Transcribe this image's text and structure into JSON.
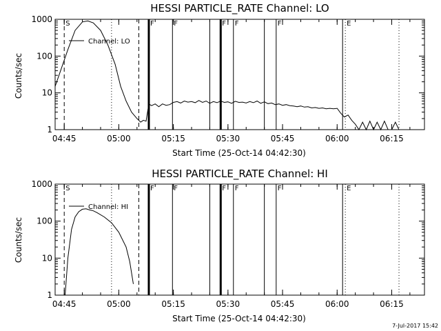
{
  "footer": {
    "timestamp": "7-Jul-2017 15:42"
  },
  "chart_data": [
    {
      "type": "line",
      "title": "HESSI PARTICLE_RATE Channel: LO",
      "xlabel": "Start Time (25-Oct-14 04:42:30)",
      "ylabel": "Counts/sec",
      "y_scale": "log",
      "ylim": [
        1,
        1000
      ],
      "xlim": [
        "04:42:30",
        "06:24:00"
      ],
      "x_ticks": [
        "04:45",
        "05:00",
        "05:15",
        "05:30",
        "05:45",
        "06:00",
        "06:15"
      ],
      "y_ticks": [
        "1",
        "10",
        "100",
        "1000"
      ],
      "legend": "Channel: LO",
      "series": [
        {
          "name": "Channel: LO",
          "x": [
            "04:42:30",
            "04:44:00",
            "04:46:00",
            "04:48:00",
            "04:50:00",
            "04:51:30",
            "04:53:00",
            "04:55:00",
            "04:57:00",
            "04:59:00",
            "05:00:30",
            "05:02:00",
            "05:03:30",
            "05:05:00",
            "05:06:00",
            "05:06:45",
            "05:07:30",
            "05:08:15",
            "05:09:00",
            "05:10:00",
            "05:11:00",
            "05:12:00",
            "05:13:00",
            "05:14:00",
            "05:15:00",
            "05:16:00",
            "05:17:00",
            "05:18:00",
            "05:19:00",
            "05:20:00",
            "05:21:00",
            "05:22:00",
            "05:23:00",
            "05:24:00",
            "05:25:00",
            "05:26:00",
            "05:27:00",
            "05:28:00",
            "05:29:00",
            "05:30:00",
            "05:31:00",
            "05:32:00",
            "05:33:00",
            "05:34:00",
            "05:35:00",
            "05:36:00",
            "05:37:00",
            "05:38:00",
            "05:39:00",
            "05:40:00",
            "05:41:00",
            "05:42:00",
            "05:43:00",
            "05:44:00",
            "05:45:00",
            "05:46:00",
            "05:47:00",
            "05:48:00",
            "05:49:00",
            "05:50:00",
            "05:51:00",
            "05:52:00",
            "05:53:00",
            "05:54:00",
            "05:55:00",
            "05:56:00",
            "05:57:00",
            "05:58:00",
            "05:59:00",
            "06:00:00",
            "06:01:00",
            "06:02:00",
            "06:03:00",
            "06:04:00",
            "06:05:00",
            "06:06:00",
            "06:07:00",
            "06:08:00",
            "06:09:00",
            "06:10:00",
            "06:11:00",
            "06:12:00",
            "06:13:00",
            "06:14:00",
            "06:15:00",
            "06:16:00",
            "06:17:00",
            "06:18:00"
          ],
          "values": [
            15,
            40,
            150,
            500,
            850,
            900,
            800,
            500,
            200,
            60,
            15,
            6,
            3,
            2,
            1.6,
            1.8,
            1.7,
            5,
            4.5,
            5,
            4.2,
            5,
            4.6,
            4.8,
            5.5,
            5.8,
            5.3,
            6,
            5.6,
            5.8,
            5.4,
            6.2,
            5.5,
            6,
            5.2,
            5.8,
            5.4,
            6,
            5.5,
            5.7,
            5.2,
            5.9,
            5.5,
            5.6,
            5.3,
            5.8,
            5.4,
            6,
            5.2,
            5.7,
            5.1,
            5.3,
            4.8,
            5,
            4.6,
            4.8,
            4.5,
            4.4,
            4.2,
            4.4,
            4.1,
            4.2,
            3.9,
            4,
            3.8,
            3.9,
            3.7,
            3.8,
            3.7,
            3.8,
            2.8,
            2.2,
            2.5,
            1.8,
            1.4,
            1,
            1.6,
            1,
            1.7,
            1,
            1.6,
            1,
            1.7,
            1,
            1,
            1.6,
            1,
            1
          ]
        }
      ],
      "markers": [
        {
          "label": "S",
          "time": "04:45:00",
          "style": "dashed"
        },
        {
          "time": "04:58:00",
          "style": "dotted"
        },
        {
          "time": "05:05:30",
          "style": "dashed"
        },
        {
          "label": "F",
          "time": "05:08:15",
          "style": "thick"
        },
        {
          "label": "F",
          "time": "05:14:45",
          "style": "solid"
        },
        {
          "time": "05:25:00",
          "style": "solid"
        },
        {
          "label": "F",
          "time": "05:28:00",
          "style": "thick"
        },
        {
          "label": "F",
          "time": "05:31:30",
          "style": "solid"
        },
        {
          "time": "05:40:00",
          "style": "solid"
        },
        {
          "label": "F",
          "time": "05:43:15",
          "style": "solid"
        },
        {
          "time": "06:01:30",
          "style": "solid"
        },
        {
          "label": "E",
          "time": "06:02:15",
          "style": "dotted"
        },
        {
          "time": "06:17:00",
          "style": "dotted"
        }
      ]
    },
    {
      "type": "line",
      "title": "HESSI PARTICLE_RATE Channel: HI",
      "xlabel": "Start Time (25-Oct-14 04:42:30)",
      "ylabel": "Counts/sec",
      "y_scale": "log",
      "ylim": [
        1,
        1000
      ],
      "xlim": [
        "04:42:30",
        "06:24:00"
      ],
      "x_ticks": [
        "04:45",
        "05:00",
        "05:15",
        "05:30",
        "05:45",
        "06:00",
        "06:15"
      ],
      "y_ticks": [
        "1",
        "10",
        "100",
        "1000"
      ],
      "legend": "Channel: HI",
      "series": [
        {
          "name": "Channel: HI",
          "x": [
            "04:45:15",
            "04:46:00",
            "04:47:00",
            "04:48:00",
            "04:49:00",
            "04:50:00",
            "04:51:00",
            "04:52:00",
            "04:53:00",
            "04:54:00",
            "04:56:00",
            "04:58:00",
            "05:00:00",
            "05:02:00",
            "05:03:00",
            "05:04:00"
          ],
          "values": [
            1,
            10,
            60,
            130,
            180,
            210,
            215,
            200,
            190,
            170,
            130,
            90,
            50,
            20,
            8,
            2
          ]
        }
      ],
      "markers": [
        {
          "label": "S",
          "time": "04:45:00",
          "style": "dashed"
        },
        {
          "time": "04:58:00",
          "style": "dotted"
        },
        {
          "time": "05:05:30",
          "style": "dashed"
        },
        {
          "label": "F",
          "time": "05:08:15",
          "style": "thick"
        },
        {
          "label": "F",
          "time": "05:14:45",
          "style": "solid"
        },
        {
          "time": "05:25:00",
          "style": "solid"
        },
        {
          "label": "F",
          "time": "05:28:00",
          "style": "thick"
        },
        {
          "label": "F",
          "time": "05:31:30",
          "style": "solid"
        },
        {
          "time": "05:40:00",
          "style": "solid"
        },
        {
          "label": "F",
          "time": "05:43:15",
          "style": "solid"
        },
        {
          "time": "06:01:30",
          "style": "solid"
        },
        {
          "label": "E",
          "time": "06:02:15",
          "style": "dotted"
        },
        {
          "time": "06:17:00",
          "style": "dotted"
        }
      ]
    }
  ]
}
